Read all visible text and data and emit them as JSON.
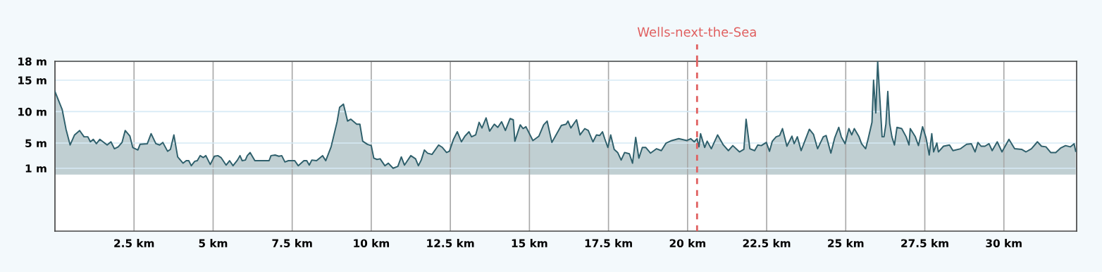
{
  "chart_data": {
    "type": "area",
    "x": [
      0,
      0.23,
      0.35,
      0.48,
      0.62,
      0.78,
      0.92,
      1.04,
      1.12,
      1.21,
      1.31,
      1.42,
      1.65,
      1.77,
      1.88,
      2.0,
      2.12,
      2.22,
      2.37,
      2.46,
      2.62,
      2.69,
      2.92,
      3.04,
      3.19,
      3.31,
      3.41,
      3.56,
      3.65,
      3.76,
      3.88,
      4.05,
      4.15,
      4.23,
      4.31,
      4.42,
      4.5,
      4.59,
      4.69,
      4.77,
      4.91,
      5.04,
      5.15,
      5.25,
      5.41,
      5.52,
      5.63,
      5.77,
      5.85,
      5.92,
      6.02,
      6.08,
      6.17,
      6.32,
      6.77,
      6.83,
      6.96,
      7.08,
      7.17,
      7.27,
      7.38,
      7.58,
      7.69,
      7.87,
      7.96,
      8.04,
      8.12,
      8.27,
      8.46,
      8.56,
      8.73,
      8.92,
      9.0,
      9.12,
      9.25,
      9.35,
      9.54,
      9.64,
      9.73,
      9.88,
      10.0,
      10.08,
      10.18,
      10.28,
      10.43,
      10.54,
      10.69,
      10.84,
      10.95,
      11.05,
      11.25,
      11.4,
      11.49,
      11.58,
      11.68,
      11.78,
      11.92,
      12.13,
      12.25,
      12.38,
      12.47,
      12.6,
      12.72,
      12.85,
      12.96,
      13.09,
      13.17,
      13.3,
      13.41,
      13.5,
      13.63,
      13.74,
      13.89,
      14.0,
      14.12,
      14.24,
      14.39,
      14.49,
      14.54,
      14.71,
      14.8,
      14.89,
      15.11,
      15.3,
      15.45,
      15.56,
      15.71,
      15.82,
      16.01,
      16.16,
      16.22,
      16.31,
      16.49,
      16.6,
      16.75,
      16.86,
      17.01,
      17.12,
      17.22,
      17.31,
      17.38,
      17.48,
      17.57,
      17.68,
      17.79,
      17.9,
      18.01,
      18.16,
      18.26,
      18.36,
      18.46,
      18.57,
      18.68,
      18.83,
      19.02,
      19.17,
      19.32,
      19.5,
      19.72,
      19.98,
      20.1,
      20.21,
      20.3,
      20.36,
      20.41,
      20.54,
      20.62,
      20.75,
      20.95,
      21.13,
      21.29,
      21.43,
      21.64,
      21.78,
      21.85,
      21.97,
      22.12,
      22.22,
      22.33,
      22.49,
      22.59,
      22.68,
      22.8,
      22.91,
      23.0,
      23.14,
      23.3,
      23.37,
      23.47,
      23.59,
      23.72,
      23.85,
      23.98,
      24.11,
      24.29,
      24.38,
      24.53,
      24.65,
      24.78,
      24.86,
      24.98,
      25.1,
      25.19,
      25.27,
      25.42,
      25.5,
      25.63,
      25.71,
      25.83,
      25.88,
      25.95,
      26.01,
      26.15,
      26.21,
      26.27,
      26.33,
      26.39,
      26.46,
      26.54,
      26.62,
      26.77,
      26.91,
      27.0,
      27.04,
      27.2,
      27.3,
      27.43,
      27.54,
      27.64,
      27.72,
      27.78,
      27.88,
      27.93,
      28.09,
      28.28,
      28.39,
      28.63,
      28.82,
      28.97,
      29.09,
      29.18,
      29.28,
      29.4,
      29.53,
      29.63,
      29.79,
      29.94,
      30.16,
      30.34,
      30.56,
      30.7,
      30.87,
      31.06,
      31.19,
      31.33,
      31.48,
      31.64,
      31.79,
      31.95,
      32.1,
      32.22,
      32.27
    ],
    "series": [
      {
        "color": "#2e5f6b",
        "values": [
          13.2,
          10.3,
          7.2,
          4.7,
          6.3,
          7.0,
          6.0,
          6.0,
          5.2,
          5.6,
          4.9,
          5.6,
          4.7,
          5.2,
          4.1,
          4.4,
          5.1,
          7.0,
          6.1,
          4.3,
          3.9,
          4.8,
          4.9,
          6.5,
          4.9,
          4.7,
          5.1,
          3.7,
          4.0,
          6.3,
          2.8,
          1.8,
          2.2,
          2.2,
          1.4,
          2.1,
          2.2,
          3.0,
          2.7,
          3.0,
          1.6,
          2.9,
          3.0,
          2.7,
          1.5,
          2.2,
          1.4,
          2.3,
          3.0,
          2.2,
          2.3,
          3.0,
          3.5,
          2.2,
          2.2,
          3.0,
          3.1,
          2.9,
          3.0,
          2.0,
          2.2,
          2.2,
          1.4,
          2.2,
          2.2,
          1.5,
          2.3,
          2.2,
          3.0,
          2.2,
          4.4,
          8.4,
          10.7,
          11.2,
          8.5,
          8.8,
          8.0,
          8.0,
          5.3,
          4.8,
          4.6,
          2.6,
          2.4,
          2.5,
          1.4,
          1.8,
          1.0,
          1.3,
          2.8,
          1.5,
          3.0,
          2.5,
          1.4,
          2.3,
          3.9,
          3.4,
          3.2,
          4.7,
          4.3,
          3.5,
          3.7,
          5.6,
          6.8,
          5.2,
          6.1,
          6.8,
          6.0,
          6.3,
          8.3,
          7.4,
          9.0,
          6.9,
          8.0,
          7.5,
          8.4,
          7.0,
          8.9,
          8.7,
          5.3,
          7.9,
          7.3,
          7.6,
          5.4,
          6.1,
          7.9,
          8.5,
          5.1,
          6.1,
          7.8,
          8.0,
          8.5,
          7.4,
          8.7,
          6.3,
          7.3,
          7.0,
          5.2,
          6.3,
          6.2,
          6.8,
          5.7,
          4.3,
          6.3,
          4.0,
          3.5,
          2.3,
          3.5,
          3.3,
          1.8,
          5.9,
          2.6,
          4.3,
          4.3,
          3.4,
          4.1,
          3.8,
          5.0,
          5.4,
          5.7,
          5.4,
          5.7,
          5.2,
          5.7,
          4.4,
          6.5,
          4.3,
          5.3,
          4.1,
          6.3,
          4.7,
          3.8,
          4.6,
          3.6,
          4.0,
          8.8,
          4.1,
          3.8,
          4.7,
          4.6,
          5.1,
          3.7,
          5.3,
          6.0,
          6.2,
          7.3,
          4.5,
          6.1,
          4.9,
          6.0,
          3.8,
          5.5,
          7.2,
          6.4,
          4.1,
          6.0,
          6.2,
          3.4,
          5.8,
          7.5,
          6.0,
          4.9,
          7.3,
          6.3,
          7.3,
          6.0,
          4.9,
          4.1,
          5.7,
          8.3,
          15.0,
          9.8,
          18,
          6.0,
          6.0,
          8.0,
          13.2,
          8.1,
          6.0,
          4.7,
          7.5,
          7.3,
          6.0,
          4.7,
          7.3,
          6.0,
          4.6,
          7.6,
          5.8,
          3.1,
          6.5,
          3.6,
          5.0,
          3.6,
          4.5,
          4.7,
          3.8,
          4.1,
          4.8,
          4.9,
          3.6,
          5.1,
          4.5,
          4.5,
          4.9,
          3.8,
          5.2,
          3.6,
          5.6,
          4.1,
          4.0,
          3.6,
          4.1,
          5.2,
          4.5,
          4.4,
          3.5,
          3.5,
          4.2,
          4.6,
          4.4,
          4.9,
          3.7
        ]
      }
    ],
    "xlim": [
      0,
      32.3
    ],
    "xticks": [
      {
        "value": 2.5,
        "label": "2.5 km"
      },
      {
        "value": 5,
        "label": "5 km"
      },
      {
        "value": 7.5,
        "label": "7.5 km"
      },
      {
        "value": 10,
        "label": "10 km"
      },
      {
        "value": 12.5,
        "label": "12.5 km"
      },
      {
        "value": 15,
        "label": "15 km"
      },
      {
        "value": 17.5,
        "label": "17.5 km"
      },
      {
        "value": 20,
        "label": "20 km"
      },
      {
        "value": 22.5,
        "label": "22.5 km"
      },
      {
        "value": 25,
        "label": "25 km"
      },
      {
        "value": 27.5,
        "label": "27.5 km"
      },
      {
        "value": 30,
        "label": "30 km"
      }
    ],
    "ylim": [
      -9,
      18
    ],
    "yticks": [
      {
        "value": 1,
        "label": "1 m"
      },
      {
        "value": 5,
        "label": "5 m"
      },
      {
        "value": 10,
        "label": "10 m"
      },
      {
        "value": 15,
        "label": "15 m"
      },
      {
        "value": 18,
        "label": "18 m"
      }
    ],
    "grid": true,
    "ref_lines": [
      {
        "axis": "x",
        "value": 20.3,
        "label": "Wells-next-the-Sea",
        "color": "#e06060",
        "line_style": "dashed"
      }
    ]
  }
}
